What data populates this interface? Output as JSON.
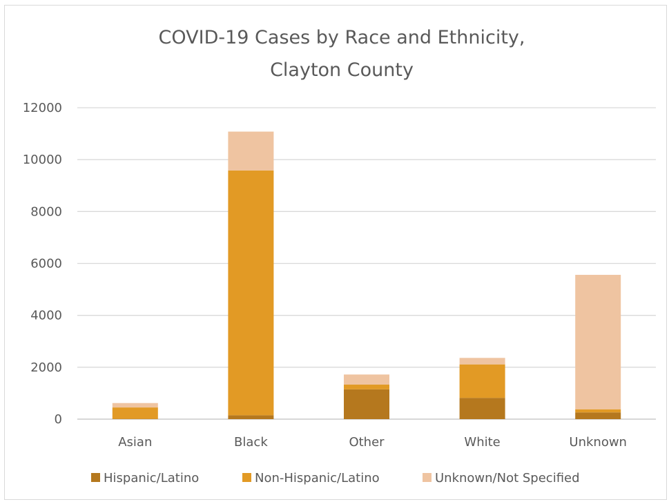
{
  "chart_data": {
    "type": "bar",
    "stacked": true,
    "title_lines": [
      "COVID-19 Cases by Race and Ethnicity,",
      "Clayton County"
    ],
    "xlabel": "",
    "ylabel": "",
    "ylim": [
      0,
      12000
    ],
    "y_ticks": [
      "0",
      "2000",
      "4000",
      "6000",
      "8000",
      "10000",
      "12000"
    ],
    "grid": true,
    "legend_position": "bottom",
    "categories": [
      "Asian",
      "Black",
      "Other",
      "White",
      "Unknown"
    ],
    "series": [
      {
        "name": "Hispanic/Latino",
        "color": "#b5781e",
        "values": [
          10,
          150,
          1150,
          820,
          260
        ]
      },
      {
        "name": "Non-Hispanic/Latino",
        "color": "#e29a25",
        "values": [
          440,
          9430,
          180,
          1290,
          120
        ]
      },
      {
        "name": "Unknown/Not Specified",
        "color": "#efc4a1",
        "values": [
          170,
          1500,
          390,
          250,
          5180
        ]
      }
    ]
  }
}
